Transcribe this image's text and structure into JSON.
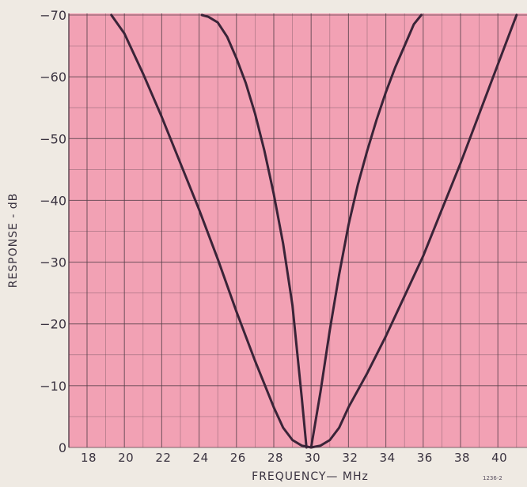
{
  "chart_data": {
    "type": "line",
    "xlabel": "FREQUENCY— MHz",
    "ylabel": "RESPONSE - dB",
    "figure_id": "1236-2",
    "xlim": [
      16.5,
      42
    ],
    "ylim": [
      0,
      -70
    ],
    "x_ticks": [
      18,
      20,
      22,
      24,
      26,
      28,
      30,
      32,
      34,
      36,
      38,
      40
    ],
    "y_ticks": [
      0,
      -10,
      -20,
      -30,
      -40,
      -50,
      -60,
      -70
    ],
    "y_tick_labels": [
      "0",
      "-10",
      "-20",
      "-30",
      "-40",
      "-50",
      "-60",
      "-70"
    ],
    "grid": true,
    "colors": {
      "plot_background": "#f2a1b4",
      "grid": "#55404a",
      "curve": "#3a2438",
      "page": "#efeae3"
    },
    "series": [
      {
        "x": [
          29.75,
          29.5,
          29.0,
          28.5,
          28.0,
          27.5,
          27.0,
          26.5,
          26.0,
          25.5,
          25.0,
          24.5,
          24.15
        ],
        "values": [
          0,
          -8,
          -23,
          -33,
          -41,
          -48,
          -54,
          -59,
          -63,
          -66.5,
          -68.8,
          -69.7,
          -70
        ]
      },
      {
        "x": [
          30.0,
          30.5,
          31.0,
          31.5,
          32.0,
          32.5,
          33.0,
          33.5,
          34.0,
          34.5,
          35.0,
          35.5,
          35.9
        ],
        "values": [
          0,
          -9,
          -19,
          -28,
          -36,
          -42.5,
          -48,
          -53,
          -57.5,
          -61.5,
          -65,
          -68.5,
          -70
        ]
      },
      {
        "x": [
          19.3,
          20,
          21,
          22,
          23,
          24,
          25,
          26,
          27,
          28,
          28.5,
          29,
          29.5,
          30,
          30.5,
          31,
          31.5,
          32,
          33,
          34,
          35,
          36,
          37,
          38,
          39,
          40,
          41
        ],
        "values": [
          -70,
          -67,
          -60.5,
          -53.5,
          -46,
          -38.5,
          -30.5,
          -22,
          -14,
          -6.5,
          -3.2,
          -1.2,
          -0.3,
          0,
          -0.3,
          -1.2,
          -3.2,
          -6.5,
          -12,
          -18,
          -24.5,
          -31,
          -38.5,
          -46,
          -54,
          -62,
          -70
        ]
      }
    ]
  }
}
